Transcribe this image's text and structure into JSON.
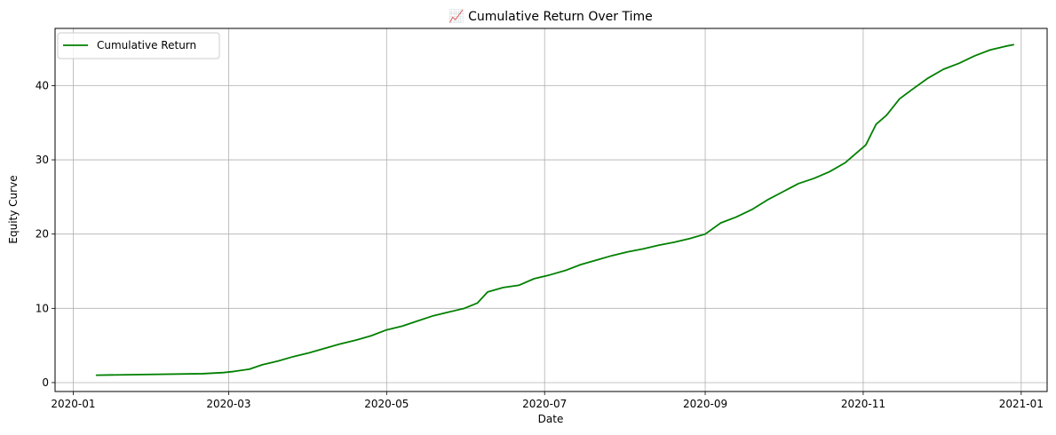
{
  "chart_data": {
    "type": "line",
    "title": "📈 Cumulative Return Over Time",
    "xlabel": "Date",
    "ylabel": "Equity Curve",
    "x_ticks": [
      "2020-01",
      "2020-03",
      "2020-05",
      "2020-07",
      "2020-09",
      "2020-11",
      "2021-01"
    ],
    "y_ticks": [
      0,
      10,
      20,
      30,
      40
    ],
    "xlim": [
      "2019-12-25",
      "2021-01-11"
    ],
    "ylim": [
      -1.2,
      47.7
    ],
    "grid": true,
    "legend_position": "upper-left",
    "series": [
      {
        "name": "Cumulative Return",
        "color": "#008000",
        "x": [
          "2020-01-10",
          "2020-02-20",
          "2020-02-28",
          "2020-03-03",
          "2020-03-09",
          "2020-03-14",
          "2020-03-20",
          "2020-03-26",
          "2020-04-01",
          "2020-04-07",
          "2020-04-13",
          "2020-04-19",
          "2020-04-25",
          "2020-05-01",
          "2020-05-07",
          "2020-05-13",
          "2020-05-19",
          "2020-05-25",
          "2020-05-31",
          "2020-06-05",
          "2020-06-09",
          "2020-06-15",
          "2020-06-21",
          "2020-06-27",
          "2020-07-03",
          "2020-07-09",
          "2020-07-15",
          "2020-07-21",
          "2020-07-27",
          "2020-08-02",
          "2020-08-08",
          "2020-08-14",
          "2020-08-20",
          "2020-08-26",
          "2020-09-01",
          "2020-09-07",
          "2020-09-13",
          "2020-09-19",
          "2020-09-25",
          "2020-10-01",
          "2020-10-07",
          "2020-10-13",
          "2020-10-19",
          "2020-10-25",
          "2020-10-29",
          "2020-11-02",
          "2020-11-06",
          "2020-11-10",
          "2020-11-15",
          "2020-11-20",
          "2020-11-26",
          "2020-12-02",
          "2020-12-08",
          "2020-12-14",
          "2020-12-20",
          "2020-12-26",
          "2020-12-29"
        ],
        "y": [
          1.0,
          1.2,
          1.35,
          1.5,
          1.8,
          2.4,
          2.9,
          3.5,
          4.0,
          4.6,
          5.2,
          5.7,
          6.3,
          7.1,
          7.6,
          8.3,
          9.0,
          9.5,
          10.0,
          10.7,
          12.2,
          12.8,
          13.1,
          14.0,
          14.5,
          15.1,
          15.9,
          16.5,
          17.1,
          17.6,
          18.0,
          18.5,
          18.9,
          19.4,
          20.0,
          21.5,
          22.3,
          23.3,
          24.6,
          25.7,
          26.8,
          27.5,
          28.4,
          29.6,
          30.8,
          32.0,
          34.8,
          36.0,
          38.2,
          39.5,
          41.0,
          42.2,
          43.0,
          44.0,
          44.8,
          45.3,
          45.5
        ]
      }
    ]
  }
}
